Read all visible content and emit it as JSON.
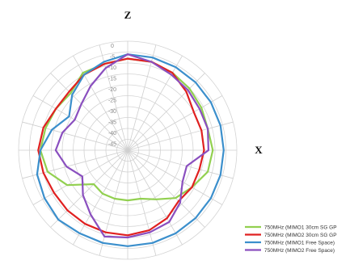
{
  "chart_data": {
    "type": "polar-line",
    "axis_labels": {
      "top": "Z",
      "right": "X"
    },
    "radial_ticks": [
      "0",
      "-5",
      "-10",
      "-15",
      "-20",
      "-25",
      "-30",
      "-35",
      "-40",
      "-45"
    ],
    "rlim": [
      -50,
      0
    ],
    "angular_step_deg": 15,
    "grid": true,
    "legend_position": "bottom-right",
    "angles_deg": [
      0,
      15,
      30,
      45,
      60,
      75,
      90,
      105,
      120,
      135,
      150,
      165,
      180,
      195,
      210,
      225,
      240,
      255,
      270,
      285,
      300,
      315,
      330,
      345
    ],
    "series": [
      {
        "name": "750MHz (MIMO1 30cm SG GP",
        "color": "#92D050",
        "values": [
          -8,
          -8,
          -9,
          -10,
          -11,
          -12,
          -11,
          -12,
          -16,
          -19,
          -24,
          -27,
          -27,
          -27,
          -27,
          -28,
          -18,
          -12,
          -10,
          -11,
          -12,
          -13,
          -9,
          -9
        ]
      },
      {
        "name": "750MHz (MIMO2 30cm SG GP",
        "color": "#E02020",
        "values": [
          -8,
          -8,
          -9,
          -12,
          -15,
          -15,
          -15,
          -16,
          -16,
          -17,
          -14,
          -12,
          -11,
          -11,
          -11,
          -11,
          -11,
          -10,
          -9,
          -10,
          -12,
          -12,
          -10,
          -9
        ]
      },
      {
        "name": "750MHz (MIMO1 Free Space)",
        "color": "#3B8FCC",
        "values": [
          -6,
          -6,
          -6,
          -6,
          -6,
          -6,
          -6,
          -6,
          -6,
          -6,
          -6,
          -6,
          -6,
          -6,
          -6,
          -5,
          -6,
          -7,
          -10,
          -14,
          -19,
          -14,
          -10,
          -8
        ]
      },
      {
        "name": "750MHz (MIMO2 Free Space)",
        "color": "#8A4FBF",
        "values": [
          -6,
          -8,
          -10,
          -11,
          -12,
          -12,
          -13,
          -22,
          -21,
          -16,
          -12,
          -11,
          -10,
          -9,
          -16,
          -21,
          -26,
          -21,
          -17,
          -19,
          -22,
          -20,
          -16,
          -11
        ]
      }
    ]
  }
}
